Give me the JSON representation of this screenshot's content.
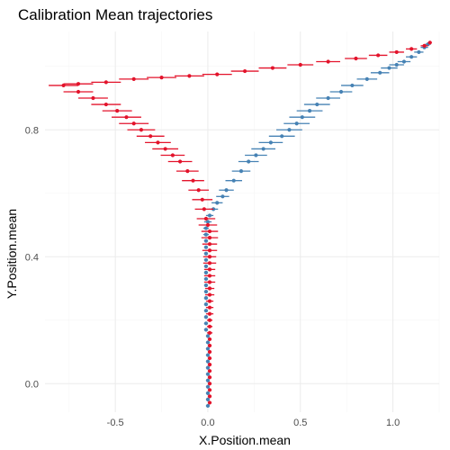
{
  "chart_data": {
    "type": "scatter",
    "title": "Calibration Mean trajectories",
    "xlabel": "X.Position.mean",
    "ylabel": "Y.Position.mean",
    "xlim": [
      -0.88,
      1.25
    ],
    "ylim": [
      -0.09,
      1.11
    ],
    "x_ticks": [
      -0.5,
      0.0,
      0.5,
      1.0
    ],
    "x_tick_labels": [
      "-0.5",
      "0.0",
      "0.5",
      "1.0"
    ],
    "y_ticks": [
      0.0,
      0.4,
      0.8
    ],
    "y_tick_labels": [
      "0.0",
      "0.4",
      "0.8"
    ],
    "grid": true,
    "legend": "none",
    "error_bars": "horizontal",
    "series": [
      {
        "color": "#4682b4",
        "points": [
          {
            "x": 0.0,
            "y": -0.07,
            "err": 0.01
          },
          {
            "x": 0.0,
            "y": -0.05,
            "err": 0.01
          },
          {
            "x": 0.0,
            "y": -0.03,
            "err": 0.01
          },
          {
            "x": 0.0,
            "y": -0.01,
            "err": 0.01
          },
          {
            "x": 0.0,
            "y": 0.01,
            "err": 0.01
          },
          {
            "x": 0.0,
            "y": 0.03,
            "err": 0.01
          },
          {
            "x": 0.0,
            "y": 0.05,
            "err": 0.01
          },
          {
            "x": 0.0,
            "y": 0.07,
            "err": 0.01
          },
          {
            "x": 0.0,
            "y": 0.09,
            "err": 0.01
          },
          {
            "x": 0.0,
            "y": 0.11,
            "err": 0.01
          },
          {
            "x": 0.0,
            "y": 0.13,
            "err": 0.01
          },
          {
            "x": 0.0,
            "y": 0.15,
            "err": 0.01
          },
          {
            "x": -0.01,
            "y": 0.17,
            "err": 0.01
          },
          {
            "x": -0.01,
            "y": 0.19,
            "err": 0.01
          },
          {
            "x": -0.01,
            "y": 0.21,
            "err": 0.01
          },
          {
            "x": -0.01,
            "y": 0.23,
            "err": 0.01
          },
          {
            "x": -0.01,
            "y": 0.25,
            "err": 0.01
          },
          {
            "x": -0.01,
            "y": 0.27,
            "err": 0.01
          },
          {
            "x": -0.01,
            "y": 0.29,
            "err": 0.01
          },
          {
            "x": -0.01,
            "y": 0.31,
            "err": 0.01
          },
          {
            "x": -0.01,
            "y": 0.33,
            "err": 0.01
          },
          {
            "x": -0.01,
            "y": 0.35,
            "err": 0.01
          },
          {
            "x": -0.01,
            "y": 0.37,
            "err": 0.01
          },
          {
            "x": -0.01,
            "y": 0.39,
            "err": 0.01
          },
          {
            "x": -0.01,
            "y": 0.41,
            "err": 0.01
          },
          {
            "x": -0.01,
            "y": 0.43,
            "err": 0.01
          },
          {
            "x": -0.01,
            "y": 0.45,
            "err": 0.01
          },
          {
            "x": -0.01,
            "y": 0.47,
            "err": 0.015
          },
          {
            "x": -0.01,
            "y": 0.49,
            "err": 0.015
          },
          {
            "x": 0.0,
            "y": 0.51,
            "err": 0.02
          },
          {
            "x": 0.01,
            "y": 0.53,
            "err": 0.02
          },
          {
            "x": 0.03,
            "y": 0.55,
            "err": 0.025
          },
          {
            "x": 0.05,
            "y": 0.57,
            "err": 0.03
          },
          {
            "x": 0.08,
            "y": 0.59,
            "err": 0.035
          },
          {
            "x": 0.1,
            "y": 0.61,
            "err": 0.04
          },
          {
            "x": 0.14,
            "y": 0.64,
            "err": 0.045
          },
          {
            "x": 0.18,
            "y": 0.67,
            "err": 0.05
          },
          {
            "x": 0.22,
            "y": 0.7,
            "err": 0.055
          },
          {
            "x": 0.26,
            "y": 0.72,
            "err": 0.06
          },
          {
            "x": 0.3,
            "y": 0.74,
            "err": 0.065
          },
          {
            "x": 0.34,
            "y": 0.76,
            "err": 0.065
          },
          {
            "x": 0.4,
            "y": 0.78,
            "err": 0.07
          },
          {
            "x": 0.44,
            "y": 0.8,
            "err": 0.07
          },
          {
            "x": 0.48,
            "y": 0.82,
            "err": 0.07
          },
          {
            "x": 0.51,
            "y": 0.84,
            "err": 0.07
          },
          {
            "x": 0.55,
            "y": 0.86,
            "err": 0.07
          },
          {
            "x": 0.59,
            "y": 0.88,
            "err": 0.07
          },
          {
            "x": 0.65,
            "y": 0.9,
            "err": 0.065
          },
          {
            "x": 0.72,
            "y": 0.92,
            "err": 0.06
          },
          {
            "x": 0.78,
            "y": 0.94,
            "err": 0.06
          },
          {
            "x": 0.86,
            "y": 0.96,
            "err": 0.055
          },
          {
            "x": 0.93,
            "y": 0.98,
            "err": 0.05
          },
          {
            "x": 0.98,
            "y": 0.995,
            "err": 0.045
          },
          {
            "x": 1.02,
            "y": 1.005,
            "err": 0.04
          },
          {
            "x": 1.06,
            "y": 1.015,
            "err": 0.035
          },
          {
            "x": 1.1,
            "y": 1.03,
            "err": 0.03
          },
          {
            "x": 1.14,
            "y": 1.045,
            "err": 0.025
          },
          {
            "x": 1.17,
            "y": 1.06,
            "err": 0.02
          },
          {
            "x": 1.19,
            "y": 1.07,
            "err": 0.015
          }
        ]
      },
      {
        "color": "#e3132b",
        "points": [
          {
            "x": 0.01,
            "y": -0.06,
            "err": 0.01
          },
          {
            "x": 0.01,
            "y": -0.04,
            "err": 0.01
          },
          {
            "x": 0.01,
            "y": -0.02,
            "err": 0.01
          },
          {
            "x": 0.01,
            "y": 0.0,
            "err": 0.01
          },
          {
            "x": 0.01,
            "y": 0.02,
            "err": 0.01
          },
          {
            "x": 0.01,
            "y": 0.04,
            "err": 0.01
          },
          {
            "x": 0.01,
            "y": 0.06,
            "err": 0.01
          },
          {
            "x": 0.01,
            "y": 0.08,
            "err": 0.01
          },
          {
            "x": 0.01,
            "y": 0.1,
            "err": 0.01
          },
          {
            "x": 0.01,
            "y": 0.12,
            "err": 0.01
          },
          {
            "x": 0.01,
            "y": 0.14,
            "err": 0.01
          },
          {
            "x": 0.01,
            "y": 0.16,
            "err": 0.015
          },
          {
            "x": 0.01,
            "y": 0.18,
            "err": 0.015
          },
          {
            "x": 0.01,
            "y": 0.2,
            "err": 0.015
          },
          {
            "x": 0.01,
            "y": 0.22,
            "err": 0.02
          },
          {
            "x": 0.01,
            "y": 0.24,
            "err": 0.02
          },
          {
            "x": 0.01,
            "y": 0.26,
            "err": 0.02
          },
          {
            "x": 0.01,
            "y": 0.28,
            "err": 0.025
          },
          {
            "x": 0.01,
            "y": 0.3,
            "err": 0.025
          },
          {
            "x": 0.01,
            "y": 0.32,
            "err": 0.03
          },
          {
            "x": 0.01,
            "y": 0.34,
            "err": 0.03
          },
          {
            "x": 0.01,
            "y": 0.36,
            "err": 0.03
          },
          {
            "x": 0.01,
            "y": 0.38,
            "err": 0.035
          },
          {
            "x": 0.01,
            "y": 0.4,
            "err": 0.035
          },
          {
            "x": 0.01,
            "y": 0.42,
            "err": 0.04
          },
          {
            "x": 0.01,
            "y": 0.44,
            "err": 0.04
          },
          {
            "x": 0.01,
            "y": 0.46,
            "err": 0.045
          },
          {
            "x": 0.01,
            "y": 0.48,
            "err": 0.045
          },
          {
            "x": 0.0,
            "y": 0.5,
            "err": 0.05
          },
          {
            "x": -0.01,
            "y": 0.52,
            "err": 0.05
          },
          {
            "x": -0.02,
            "y": 0.55,
            "err": 0.05
          },
          {
            "x": -0.03,
            "y": 0.58,
            "err": 0.055
          },
          {
            "x": -0.05,
            "y": 0.61,
            "err": 0.055
          },
          {
            "x": -0.08,
            "y": 0.64,
            "err": 0.06
          },
          {
            "x": -0.11,
            "y": 0.67,
            "err": 0.06
          },
          {
            "x": -0.15,
            "y": 0.7,
            "err": 0.065
          },
          {
            "x": -0.19,
            "y": 0.72,
            "err": 0.065
          },
          {
            "x": -0.23,
            "y": 0.74,
            "err": 0.07
          },
          {
            "x": -0.27,
            "y": 0.76,
            "err": 0.07
          },
          {
            "x": -0.31,
            "y": 0.78,
            "err": 0.075
          },
          {
            "x": -0.36,
            "y": 0.8,
            "err": 0.075
          },
          {
            "x": -0.4,
            "y": 0.82,
            "err": 0.08
          },
          {
            "x": -0.44,
            "y": 0.84,
            "err": 0.08
          },
          {
            "x": -0.49,
            "y": 0.86,
            "err": 0.08
          },
          {
            "x": -0.55,
            "y": 0.88,
            "err": 0.08
          },
          {
            "x": -0.62,
            "y": 0.9,
            "err": 0.08
          },
          {
            "x": -0.7,
            "y": 0.92,
            "err": 0.08
          },
          {
            "x": -0.78,
            "y": 0.94,
            "err": 0.08
          },
          {
            "x": -0.7,
            "y": 0.945,
            "err": 0.08
          },
          {
            "x": -0.55,
            "y": 0.95,
            "err": 0.08
          },
          {
            "x": -0.4,
            "y": 0.96,
            "err": 0.08
          },
          {
            "x": -0.25,
            "y": 0.965,
            "err": 0.08
          },
          {
            "x": -0.1,
            "y": 0.97,
            "err": 0.08
          },
          {
            "x": 0.05,
            "y": 0.975,
            "err": 0.08
          },
          {
            "x": 0.2,
            "y": 0.985,
            "err": 0.075
          },
          {
            "x": 0.35,
            "y": 0.995,
            "err": 0.075
          },
          {
            "x": 0.5,
            "y": 1.005,
            "err": 0.07
          },
          {
            "x": 0.65,
            "y": 1.015,
            "err": 0.065
          },
          {
            "x": 0.8,
            "y": 1.025,
            "err": 0.06
          },
          {
            "x": 0.92,
            "y": 1.035,
            "err": 0.05
          },
          {
            "x": 1.02,
            "y": 1.045,
            "err": 0.04
          },
          {
            "x": 1.1,
            "y": 1.055,
            "err": 0.03
          },
          {
            "x": 1.17,
            "y": 1.065,
            "err": 0.02
          },
          {
            "x": 1.2,
            "y": 1.075,
            "err": 0.01
          }
        ]
      }
    ]
  }
}
